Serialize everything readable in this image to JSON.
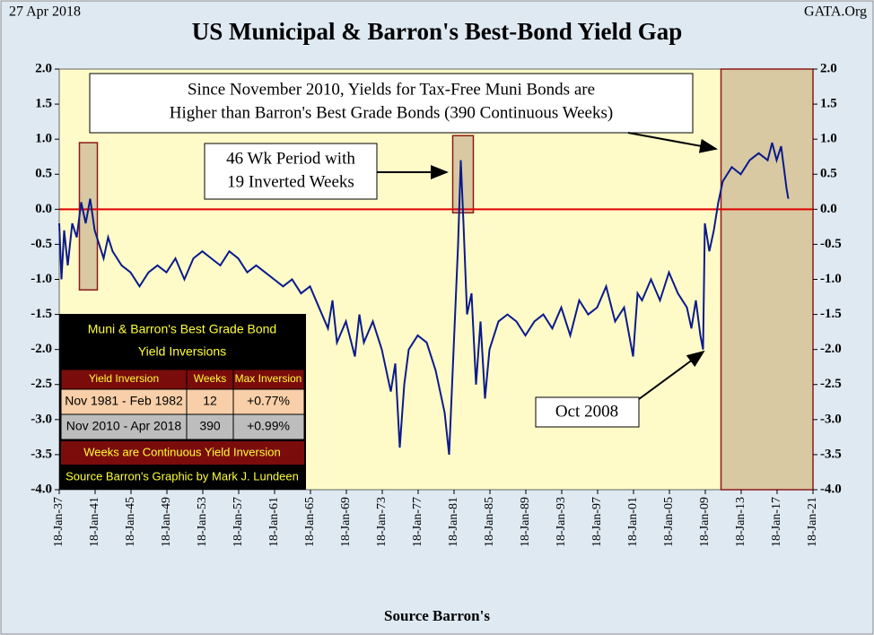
{
  "date_label": "27 Apr 2018",
  "source_site": "GATA.Org",
  "chart_data": {
    "type": "line",
    "title": "US Municipal & Barron's Best-Bond Yield Gap",
    "x_label": "Source Barron's",
    "color": "#0a1a8c",
    "reference_line": 0,
    "x": [
      1937.05,
      1937.3,
      1937.6,
      1938,
      1938.5,
      1939,
      1939.5,
      1940,
      1940.5,
      1941,
      1941.5,
      1942,
      1942.5,
      1943,
      1944,
      1945,
      1946,
      1947,
      1948,
      1949,
      1950,
      1951,
      1952,
      1953,
      1954,
      1955,
      1956,
      1957,
      1958,
      1959,
      1960,
      1961,
      1962,
      1963,
      1964,
      1965,
      1966,
      1967,
      1967.5,
      1968,
      1969,
      1970,
      1970.5,
      1971,
      1972,
      1973,
      1974,
      1974.5,
      1975,
      1975.5,
      1976,
      1977,
      1978,
      1979,
      1980,
      1980.5,
      1981,
      1981.5,
      1981.8,
      1982.1,
      1982.5,
      1983,
      1983.5,
      1984,
      1984.5,
      1985,
      1986,
      1987,
      1988,
      1989,
      1990,
      1991,
      1992,
      1993,
      1994,
      1995,
      1996,
      1997,
      1998,
      1999,
      2000,
      2001,
      2001.5,
      2002,
      2003,
      2004,
      2005,
      2006,
      2007,
      2007.5,
      2008,
      2008.5,
      2008.8,
      2009,
      2009.5,
      2010,
      2010.5,
      2011,
      2012,
      2013,
      2014,
      2015,
      2016,
      2016.5,
      2017,
      2017.5,
      2018.1,
      2018.3
    ],
    "values": [
      -0.2,
      -1.0,
      -0.3,
      -0.8,
      -0.2,
      -0.4,
      0.1,
      -0.2,
      0.15,
      -0.3,
      -0.5,
      -0.7,
      -0.4,
      -0.6,
      -0.8,
      -0.9,
      -1.1,
      -0.9,
      -0.8,
      -0.9,
      -0.7,
      -1.0,
      -0.7,
      -0.6,
      -0.7,
      -0.8,
      -0.6,
      -0.7,
      -0.9,
      -0.8,
      -0.9,
      -1.0,
      -1.1,
      -1.0,
      -1.2,
      -1.1,
      -1.4,
      -1.7,
      -1.3,
      -1.9,
      -1.6,
      -2.1,
      -1.5,
      -1.9,
      -1.6,
      -2.0,
      -2.6,
      -2.2,
      -3.4,
      -2.5,
      -2.0,
      -1.8,
      -1.9,
      -2.3,
      -2.9,
      -3.5,
      -2.0,
      -0.5,
      0.7,
      -0.2,
      -1.5,
      -1.2,
      -2.5,
      -1.6,
      -2.7,
      -2.0,
      -1.6,
      -1.5,
      -1.6,
      -1.8,
      -1.6,
      -1.5,
      -1.7,
      -1.4,
      -1.8,
      -1.3,
      -1.5,
      -1.4,
      -1.1,
      -1.6,
      -1.4,
      -2.1,
      -1.2,
      -1.3,
      -1.0,
      -1.3,
      -0.9,
      -1.2,
      -1.4,
      -1.7,
      -1.3,
      -1.8,
      -2.0,
      -0.2,
      -0.6,
      -0.3,
      0.1,
      0.4,
      0.6,
      0.5,
      0.7,
      0.8,
      0.7,
      0.95,
      0.7,
      0.9,
      0.3,
      0.15
    ],
    "xlim": [
      1937.05,
      2021.05
    ],
    "xticks": [
      {
        "value": 1937.05,
        "label": "18-Jan-37"
      },
      {
        "value": 1941.05,
        "label": "18-Jan-41"
      },
      {
        "value": 1945.05,
        "label": "18-Jan-45"
      },
      {
        "value": 1949.05,
        "label": "18-Jan-49"
      },
      {
        "value": 1953.05,
        "label": "18-Jan-53"
      },
      {
        "value": 1957.05,
        "label": "18-Jan-57"
      },
      {
        "value": 1961.05,
        "label": "18-Jan-61"
      },
      {
        "value": 1965.05,
        "label": "18-Jan-65"
      },
      {
        "value": 1969.05,
        "label": "18-Jan-69"
      },
      {
        "value": 1973.05,
        "label": "18-Jan-73"
      },
      {
        "value": 1977.05,
        "label": "18-Jan-77"
      },
      {
        "value": 1981.05,
        "label": "18-Jan-81"
      },
      {
        "value": 1985.05,
        "label": "18-Jan-85"
      },
      {
        "value": 1989.05,
        "label": "18-Jan-89"
      },
      {
        "value": 1993.05,
        "label": "18-Jan-93"
      },
      {
        "value": 1997.05,
        "label": "18-Jan-97"
      },
      {
        "value": 2001.05,
        "label": "18-Jan-01"
      },
      {
        "value": 2005.05,
        "label": "18-Jan-05"
      },
      {
        "value": 2009.05,
        "label": "18-Jan-09"
      },
      {
        "value": 2013.05,
        "label": "18-Jan-13"
      },
      {
        "value": 2017.05,
        "label": "18-Jan-17"
      },
      {
        "value": 2021.05,
        "label": "18-Jan-21"
      }
    ],
    "ylim": [
      -4,
      2
    ],
    "yticks": [
      {
        "value": 2,
        "label": "2.0"
      },
      {
        "value": 1.5,
        "label": "1.5"
      },
      {
        "value": 1,
        "label": "1.0"
      },
      {
        "value": 0.5,
        "label": "0.5"
      },
      {
        "value": 0,
        "label": "0.0"
      },
      {
        "value": -0.5,
        "label": "-0.5"
      },
      {
        "value": -1,
        "label": "-1.0"
      },
      {
        "value": -1.5,
        "label": "-1.5"
      },
      {
        "value": -2,
        "label": "-2.0"
      },
      {
        "value": -2.5,
        "label": "-2.5"
      },
      {
        "value": -3,
        "label": "-3.0"
      },
      {
        "value": -3.5,
        "label": "-3.5"
      },
      {
        "value": -4,
        "label": "-4.0"
      }
    ],
    "shaded_periods": [
      {
        "x": [
          1939.3,
          1941.3
        ],
        "y": [
          -1.15,
          0.95
        ]
      },
      {
        "x": [
          1980.9,
          1983.2
        ],
        "y": [
          -0.05,
          1.05
        ]
      },
      {
        "x": [
          2010.8,
          2021.05
        ],
        "y": [
          -4,
          2
        ]
      }
    ],
    "annotations": [
      "Since November 2010, Yields for Tax-Free Muni Bonds  are",
      "Higher than Barron's Best Grade Bonds (390 Continuous Weeks)",
      "46 Wk Period with",
      "19 Inverted Weeks",
      "Oct 2008"
    ]
  },
  "table": {
    "title": [
      "Muni & Barron's Best Grade Bond",
      "Yield Inversions"
    ],
    "header": [
      "Yield Inversion",
      "Weeks",
      "Max Inversion"
    ],
    "rows": [
      [
        "Nov 1981 - Feb 1982",
        "12",
        "+0.77%"
      ],
      [
        "Nov 2010 - Apr 2018",
        "390",
        "+0.99%"
      ]
    ],
    "footer": [
      "Weeks are Continuous Yield Inversion",
      "Source Barron's Graphic by Mark J. Lundeen"
    ]
  }
}
